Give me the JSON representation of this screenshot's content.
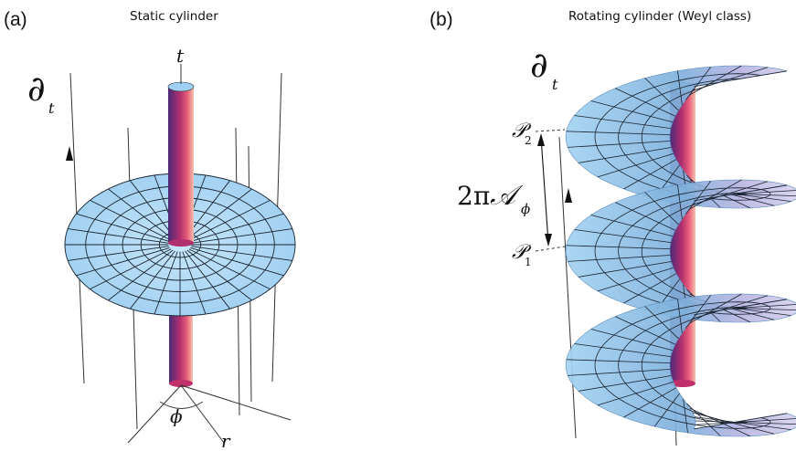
{
  "panel_a": {
    "letter": "(a)",
    "title": "Static cylinder",
    "axis_t": "t",
    "vector_base": "∂",
    "vector_sub": "t",
    "angle": "ϕ",
    "radius": "r"
  },
  "panel_b": {
    "letter": "(b)",
    "title": "Rotating cylinder (Weyl class)",
    "vector_base": "∂",
    "vector_sub": "t",
    "point_upper_base": "𝒫",
    "point_upper_sub": "2",
    "point_lower_base": "𝒫",
    "point_lower_sub": "1",
    "period_prefix": "2π",
    "period_symbol": "𝒜",
    "period_sub": "ϕ"
  },
  "colors": {
    "sheet": "#a6d4f2",
    "sheet_dark": "#7fb5de",
    "sheet_shadow": "#c4c0e6",
    "cyl_left": "#4a2a78",
    "cyl_mid": "#c0306a",
    "cyl_right": "#f2b9a6",
    "cyl_top": "#9fcff2",
    "grid": "#1a2430"
  }
}
